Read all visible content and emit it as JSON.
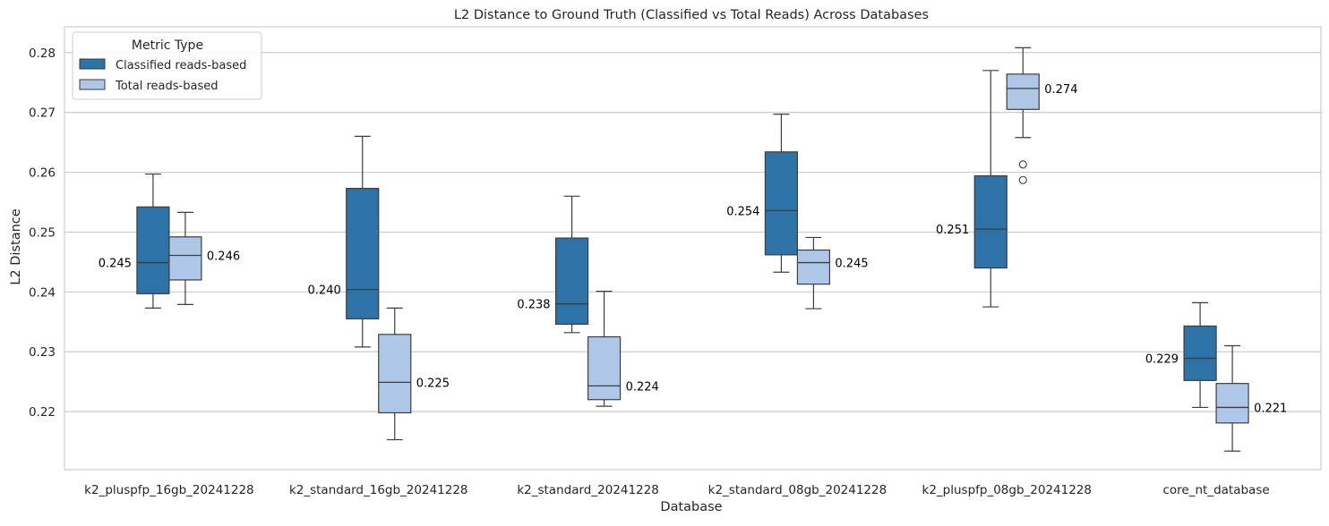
{
  "chart_data": {
    "type": "box",
    "title": "L2 Distance to Ground Truth (Classified vs Total Reads) Across Databases",
    "xlabel": "Database",
    "ylabel": "L2 Distance",
    "ylim": [
      0.2103,
      0.2843
    ],
    "yticks": [
      0.22,
      0.23,
      0.24,
      0.25,
      0.26,
      0.27,
      0.28
    ],
    "ytick_labels": [
      "0.22",
      "0.23",
      "0.24",
      "0.25",
      "0.26",
      "0.27",
      "0.28"
    ],
    "grid": true,
    "legend": {
      "title": "Metric Type",
      "placement": "top-left"
    },
    "categories": [
      "k2_pluspfp_16gb_20241228",
      "k2_standard_16gb_20241228",
      "k2_standard_20241228",
      "k2_standard_08gb_20241228",
      "k2_pluspfp_08gb_20241228",
      "core_nt_database"
    ],
    "series": [
      {
        "name": "Classified reads-based",
        "color": "#2e73a7",
        "boxes": [
          {
            "whislo": 0.2373,
            "q1": 0.2397,
            "med": 0.2449,
            "q3": 0.2542,
            "whishi": 0.2597,
            "fliers": [],
            "label": "0.245"
          },
          {
            "whislo": 0.2308,
            "q1": 0.2355,
            "med": 0.2404,
            "q3": 0.2573,
            "whishi": 0.266,
            "fliers": [],
            "label": "0.240"
          },
          {
            "whislo": 0.2332,
            "q1": 0.2346,
            "med": 0.238,
            "q3": 0.249,
            "whishi": 0.256,
            "fliers": [],
            "label": "0.238"
          },
          {
            "whislo": 0.2433,
            "q1": 0.2462,
            "med": 0.2536,
            "q3": 0.2634,
            "whishi": 0.2697,
            "fliers": [],
            "label": "0.254"
          },
          {
            "whislo": 0.2375,
            "q1": 0.244,
            "med": 0.2505,
            "q3": 0.2594,
            "whishi": 0.277,
            "fliers": [],
            "label": "0.251"
          },
          {
            "whislo": 0.2207,
            "q1": 0.2252,
            "med": 0.2289,
            "q3": 0.2343,
            "whishi": 0.2382,
            "fliers": [],
            "label": "0.229"
          }
        ]
      },
      {
        "name": "Total reads-based",
        "color": "#aec7e8",
        "boxes": [
          {
            "whislo": 0.2379,
            "q1": 0.242,
            "med": 0.2461,
            "q3": 0.2492,
            "whishi": 0.2533,
            "fliers": [],
            "label": "0.246"
          },
          {
            "whislo": 0.2153,
            "q1": 0.2198,
            "med": 0.2249,
            "q3": 0.2329,
            "whishi": 0.2373,
            "fliers": [],
            "label": "0.225"
          },
          {
            "whislo": 0.2209,
            "q1": 0.222,
            "med": 0.2243,
            "q3": 0.2325,
            "whishi": 0.2401,
            "fliers": [],
            "label": "0.224"
          },
          {
            "whislo": 0.2372,
            "q1": 0.2413,
            "med": 0.2449,
            "q3": 0.247,
            "whishi": 0.2491,
            "fliers": [],
            "label": "0.245"
          },
          {
            "whislo": 0.2658,
            "q1": 0.2705,
            "med": 0.274,
            "q3": 0.2764,
            "whishi": 0.2808,
            "fliers": [
              0.2613,
              0.2587
            ],
            "label": "0.274"
          },
          {
            "whislo": 0.2134,
            "q1": 0.2181,
            "med": 0.2207,
            "q3": 0.2247,
            "whishi": 0.231,
            "fliers": [],
            "label": "0.221"
          }
        ]
      }
    ]
  }
}
